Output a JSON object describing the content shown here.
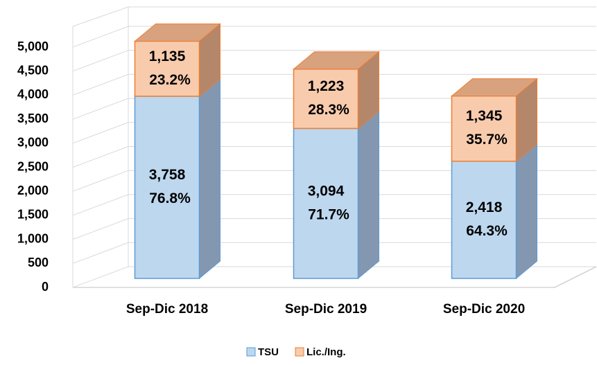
{
  "chart_data": {
    "type": "bar3d_stacked",
    "categories": [
      "Sep-Dic 2018",
      "Sep-Dic 2019",
      "Sep-Dic 2020"
    ],
    "series": [
      {
        "name": "TSU",
        "color": "#bdd7ee",
        "edge": "#5b9bd5",
        "side": "#8497b0",
        "values": [
          3758,
          3094,
          2418
        ],
        "value_labels": [
          "3,758",
          "3,094",
          "2,418"
        ],
        "percent_labels": [
          "76.8%",
          "71.7%",
          "64.3%"
        ]
      },
      {
        "name": "Lic./Ing.",
        "color": "#f8cbad",
        "edge": "#ed7d31",
        "side": "#b4876b",
        "values": [
          1135,
          1223,
          1345
        ],
        "value_labels": [
          "1,135",
          "1,223",
          "1,345"
        ],
        "percent_labels": [
          "23.2%",
          "28.3%",
          "35.7%"
        ]
      }
    ],
    "ylim": [
      0,
      5000
    ],
    "yticks": [
      0,
      500,
      {
        "value": 1000,
        "label": "1,000"
      },
      {
        "value": 1500,
        "label": "1,500"
      },
      {
        "value": 2000,
        "label": "2,000"
      },
      {
        "value": 2500,
        "label": "2,500"
      },
      {
        "value": 3000,
        "label": "3,000"
      },
      {
        "value": 3500,
        "label": "3,500"
      },
      {
        "value": 4000,
        "label": "4,000"
      },
      {
        "value": 4500,
        "label": "4,500"
      },
      {
        "value": 5000,
        "label": "5,000"
      }
    ],
    "grid": true,
    "legend": "bottom"
  }
}
